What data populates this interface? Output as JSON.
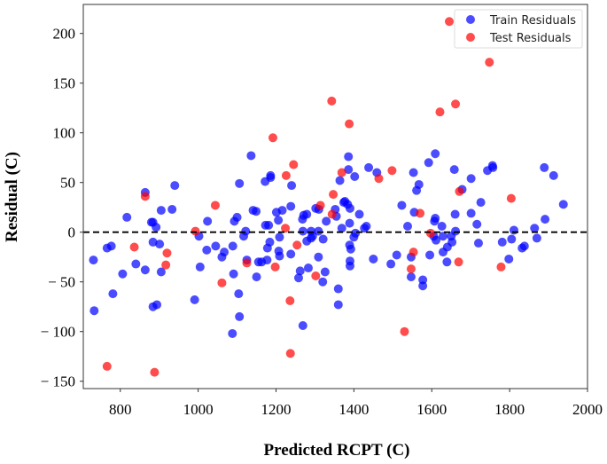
{
  "chart_data": {
    "type": "scatter",
    "title": "",
    "xlabel": "Predicted RCPT (C)",
    "ylabel": "Residual (C)",
    "xlim": [
      705,
      2000
    ],
    "ylim": [
      -157.4,
      229.2
    ],
    "xticks": [
      800,
      1000,
      1200,
      1400,
      1600,
      1800,
      2000
    ],
    "yticks": [
      -150,
      -100,
      -50,
      0,
      50,
      100,
      150,
      200
    ],
    "reference_line": {
      "y": 0,
      "style": "dashed",
      "color": "#000000"
    },
    "legend_position": "top-right",
    "grid": false,
    "series": [
      {
        "name": "Train Residuals",
        "color": "#0000ff",
        "points": [
          [
            731,
            -28
          ],
          [
            733,
            -79
          ],
          [
            766,
            -16
          ],
          [
            777,
            -14
          ],
          [
            781,
            -62
          ],
          [
            806,
            -42
          ],
          [
            817,
            15
          ],
          [
            840,
            -32
          ],
          [
            864,
            40
          ],
          [
            864,
            -38
          ],
          [
            880,
            10
          ],
          [
            884,
            10
          ],
          [
            892,
            5
          ],
          [
            884,
            -10
          ],
          [
            901,
            -12
          ],
          [
            905,
            -40
          ],
          [
            884,
            -75
          ],
          [
            894,
            -73
          ],
          [
            905,
            22
          ],
          [
            933,
            23
          ],
          [
            940,
            47
          ],
          [
            991,
            -68
          ],
          [
            1002,
            -4
          ],
          [
            1005,
            -35
          ],
          [
            1024,
            11
          ],
          [
            1022,
            -18
          ],
          [
            1045,
            -14
          ],
          [
            1067,
            -20
          ],
          [
            1061,
            -25
          ],
          [
            1089,
            -14
          ],
          [
            1091,
            -42
          ],
          [
            1093,
            11
          ],
          [
            1100,
            15
          ],
          [
            1104,
            -62
          ],
          [
            1106,
            49
          ],
          [
            1106,
            -85
          ],
          [
            1088,
            -102
          ],
          [
            1117,
            -4
          ],
          [
            1122,
            1
          ],
          [
            1125,
            -28
          ],
          [
            1136,
            77
          ],
          [
            1141,
            22
          ],
          [
            1149,
            21
          ],
          [
            1150,
            -45
          ],
          [
            1155,
            -30
          ],
          [
            1163,
            -30
          ],
          [
            1173,
            7
          ],
          [
            1181,
            7
          ],
          [
            1177,
            -28
          ],
          [
            1172,
            51
          ],
          [
            1186,
            57
          ],
          [
            1186,
            55
          ],
          [
            1178,
            -16
          ],
          [
            1184,
            -10
          ],
          [
            1201,
            20
          ],
          [
            1216,
            22
          ],
          [
            1206,
            12
          ],
          [
            1209,
            -5
          ],
          [
            1207,
            -19
          ],
          [
            1209,
            -24
          ],
          [
            1238,
            26
          ],
          [
            1240,
            47
          ],
          [
            1238,
            -22
          ],
          [
            1262,
            -39
          ],
          [
            1258,
            -46
          ],
          [
            1268,
            13
          ],
          [
            1271,
            17
          ],
          [
            1279,
            18
          ],
          [
            1269,
            -94
          ],
          [
            1269,
            1
          ],
          [
            1290,
            1
          ],
          [
            1279,
            -9
          ],
          [
            1290,
            -6
          ],
          [
            1294,
            -4
          ],
          [
            1283,
            -36
          ],
          [
            1302,
            24
          ],
          [
            1310,
            23
          ],
          [
            1309,
            1
          ],
          [
            1309,
            -25
          ],
          [
            1321,
            -7
          ],
          [
            1326,
            -40
          ],
          [
            1329,
            11
          ],
          [
            1320,
            -50
          ],
          [
            1352,
            23
          ],
          [
            1355,
            16
          ],
          [
            1360,
            -57
          ],
          [
            1360,
            -73
          ],
          [
            1364,
            52
          ],
          [
            1369,
            4
          ],
          [
            1374,
            30
          ],
          [
            1377,
            31
          ],
          [
            1384,
            28
          ],
          [
            1390,
            24
          ],
          [
            1386,
            76
          ],
          [
            1386,
            63
          ],
          [
            1389,
            9
          ],
          [
            1402,
            56
          ],
          [
            1389,
            -13
          ],
          [
            1392,
            -17
          ],
          [
            1390,
            -29
          ],
          [
            1390,
            -34
          ],
          [
            1400,
            -5
          ],
          [
            1404,
            -1
          ],
          [
            1414,
            18
          ],
          [
            1427,
            4
          ],
          [
            1432,
            6
          ],
          [
            1438,
            65
          ],
          [
            1450,
            -27
          ],
          [
            1459,
            60
          ],
          [
            1495,
            -32
          ],
          [
            1510,
            -23
          ],
          [
            1523,
            27
          ],
          [
            1538,
            6
          ],
          [
            1547,
            -25
          ],
          [
            1547,
            -45
          ],
          [
            1553,
            60
          ],
          [
            1555,
            20
          ],
          [
            1561,
            42
          ],
          [
            1567,
            48
          ],
          [
            1577,
            -48
          ],
          [
            1577,
            -54
          ],
          [
            1592,
            70
          ],
          [
            1595,
            -23
          ],
          [
            1609,
            79
          ],
          [
            1607,
            11
          ],
          [
            1609,
            14
          ],
          [
            1605,
            -4
          ],
          [
            1611,
            -8
          ],
          [
            1626,
            6
          ],
          [
            1629,
            -4
          ],
          [
            1629,
            -20
          ],
          [
            1640,
            -15
          ],
          [
            1639,
            -30
          ],
          [
            1652,
            -10
          ],
          [
            1650,
            -4
          ],
          [
            1658,
            63
          ],
          [
            1660,
            18
          ],
          [
            1661,
            1
          ],
          [
            1678,
            43
          ],
          [
            1701,
            54
          ],
          [
            1701,
            19
          ],
          [
            1716,
            8
          ],
          [
            1720,
            -11
          ],
          [
            1726,
            30
          ],
          [
            1743,
            62
          ],
          [
            1756,
            67
          ],
          [
            1757,
            65
          ],
          [
            1781,
            -10
          ],
          [
            1798,
            -27
          ],
          [
            1805,
            -7
          ],
          [
            1811,
            2
          ],
          [
            1832,
            -16
          ],
          [
            1838,
            -14
          ],
          [
            1864,
            4
          ],
          [
            1870,
            -6
          ],
          [
            1891,
            13
          ],
          [
            1889,
            65
          ],
          [
            1913,
            57
          ],
          [
            1938,
            28
          ]
        ]
      },
      {
        "name": "Test Residuals",
        "color": "#ff0000",
        "points": [
          [
            766,
            -135
          ],
          [
            836,
            -15
          ],
          [
            864,
            36
          ],
          [
            888,
            -141
          ],
          [
            920,
            -21
          ],
          [
            917,
            -33
          ],
          [
            993,
            1
          ],
          [
            1044,
            27
          ],
          [
            1061,
            -51
          ],
          [
            1125,
            -31
          ],
          [
            1192,
            95
          ],
          [
            1226,
            57
          ],
          [
            1245,
            68
          ],
          [
            1224,
            4
          ],
          [
            1198,
            -35
          ],
          [
            1236,
            -69
          ],
          [
            1237,
            -122
          ],
          [
            1254,
            -13
          ],
          [
            1302,
            -44
          ],
          [
            1314,
            27
          ],
          [
            1343,
            132
          ],
          [
            1344,
            18
          ],
          [
            1347,
            38
          ],
          [
            1369,
            60
          ],
          [
            1388,
            109
          ],
          [
            1464,
            54
          ],
          [
            1498,
            62
          ],
          [
            1570,
            19
          ],
          [
            1597,
            -1
          ],
          [
            1553,
            -20
          ],
          [
            1547,
            -37
          ],
          [
            1530,
            -100
          ],
          [
            1621,
            121
          ],
          [
            1645,
            212
          ],
          [
            1661,
            129
          ],
          [
            1669,
            -30
          ],
          [
            1671,
            41
          ],
          [
            1748,
            171
          ],
          [
            1778,
            -35
          ],
          [
            1804,
            34
          ]
        ]
      }
    ]
  }
}
